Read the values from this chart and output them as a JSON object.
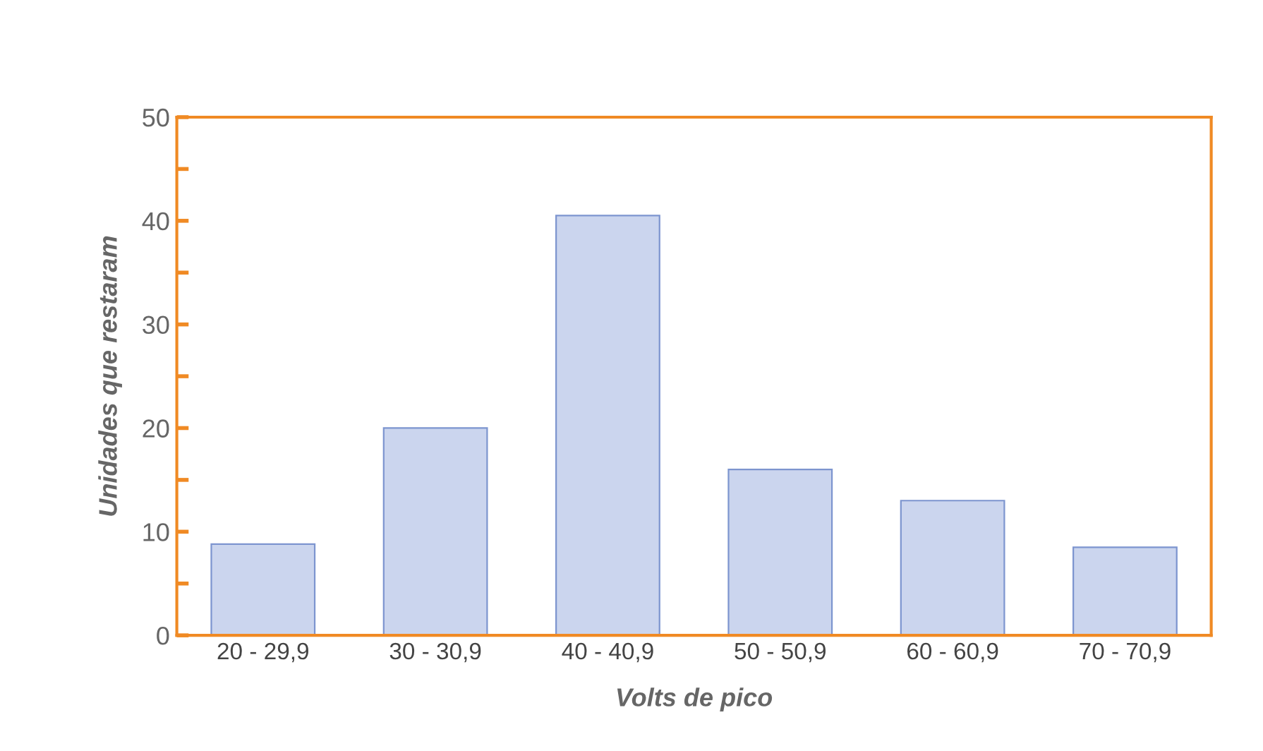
{
  "chart_data": {
    "type": "bar",
    "xlabel": "Volts de pico",
    "ylabel": "Unidades que restaram",
    "categories": [
      "20 - 29,9",
      "30 - 30,9",
      "40 - 40,9",
      "50 - 50,9",
      "60 - 60,9",
      "70 - 70,9"
    ],
    "values": [
      8.8,
      20,
      40.5,
      16,
      13,
      8.5
    ],
    "color": "#cbd5ee",
    "ylim": [
      0,
      50
    ],
    "yticks": [
      0,
      {
        "value": 5,
        "label": null
      },
      10,
      {
        "value": 15,
        "label": null
      },
      20,
      {
        "value": 25,
        "label": null
      },
      30,
      {
        "value": 35,
        "label": null
      },
      40,
      {
        "value": 45,
        "label": null
      },
      50
    ],
    "grid": false,
    "legend": false
  }
}
